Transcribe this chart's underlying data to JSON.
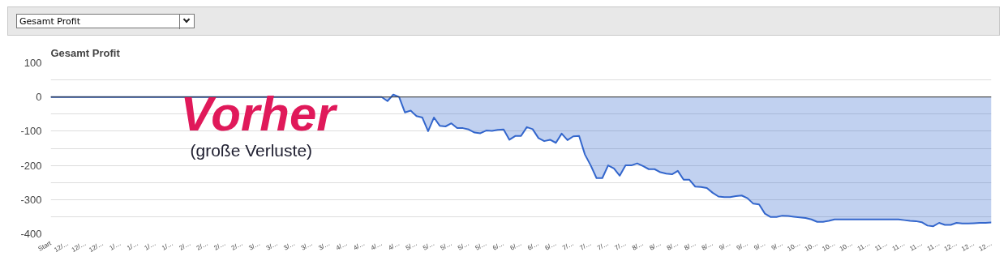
{
  "chart_data": {
    "type": "area",
    "title": "Gesamt Profit",
    "annotations": [
      "Gesamt Profit",
      "Vorher",
      "(große Verluste)"
    ],
    "categories": [
      "Start",
      null,
      null,
      "12/…",
      null,
      null,
      "12/…",
      null,
      null,
      "12/…",
      null,
      null,
      "1/…",
      null,
      null,
      "1/…",
      null,
      null,
      "1/…",
      null,
      null,
      "1/…",
      null,
      null,
      "2/…",
      null,
      null,
      "2/…",
      null,
      null,
      "2/…",
      null,
      null,
      "2/…",
      null,
      null,
      "3/…",
      null,
      null,
      "3/…",
      null,
      null,
      "3/…",
      null,
      null,
      "3/…",
      null,
      null,
      "3/…",
      null,
      null,
      "4/…",
      null,
      null,
      "4/…",
      null,
      null,
      "4/…",
      null,
      null,
      "4/…",
      null,
      null,
      "5/…",
      null,
      null,
      "5/…",
      null,
      null,
      "5/…",
      null,
      null,
      "5/…",
      null,
      null,
      "5/…",
      null,
      null,
      "6/…",
      null,
      null,
      "6/…",
      null,
      null,
      "6/…",
      null,
      null,
      "6/…",
      null,
      null,
      "7/…",
      null,
      null,
      "7/…",
      null,
      null,
      "7/…",
      null,
      null,
      "7/…",
      null,
      null,
      "8/…",
      null,
      null,
      "8/…",
      null,
      null,
      "8/…",
      null,
      null,
      "8/…",
      null,
      null,
      "8/…",
      null,
      null,
      "9/…",
      null,
      null,
      "9/…",
      null,
      null,
      "9/…",
      null,
      null,
      "9/…",
      null,
      null,
      "10…",
      null,
      null,
      "10…",
      null,
      null,
      "10…",
      null,
      null,
      "10…",
      null,
      null,
      "11…",
      null,
      null,
      "11…",
      null,
      null,
      "11…",
      null,
      null,
      "11…",
      null,
      null,
      "11…",
      null,
      null,
      "12…",
      null,
      null,
      "12…",
      null,
      null,
      "12…"
    ],
    "series": [
      {
        "color": "#3366cc",
        "values": [
          0,
          0,
          0,
          0,
          0,
          0,
          0,
          0,
          0,
          0,
          0,
          0,
          0,
          0,
          0,
          0,
          0,
          0,
          0,
          0,
          0,
          0,
          0,
          0,
          0,
          0,
          0,
          0,
          0,
          0,
          0,
          0,
          0,
          0,
          0,
          0,
          0,
          0,
          0,
          0,
          0,
          0,
          0,
          0,
          0,
          0,
          0,
          0,
          0,
          0,
          0,
          0,
          0,
          0,
          0,
          0,
          0,
          0,
          -12,
          7,
          0,
          -45,
          -40,
          -56,
          -60,
          -100,
          -60,
          -84,
          -86,
          -77,
          -91,
          -91,
          -95,
          -104,
          -106,
          -98,
          -99,
          -96,
          -95,
          -125,
          -114,
          -114,
          -88,
          -94,
          -120,
          -129,
          -125,
          -134,
          -107,
          -126,
          -115,
          -114,
          -168,
          -200,
          -237,
          -237,
          -200,
          -209,
          -230,
          -200,
          -200,
          -194,
          -202,
          -211,
          -211,
          -220,
          -224,
          -226,
          -216,
          -242,
          -242,
          -262,
          -263,
          -266,
          -280,
          -291,
          -293,
          -293,
          -290,
          -288,
          -296,
          -312,
          -314,
          -341,
          -351,
          -351,
          -347,
          -348,
          -350,
          -352,
          -354,
          -358,
          -365,
          -365,
          -362,
          -358,
          -358,
          -358,
          -358,
          -358,
          -358,
          -358,
          -358,
          -358,
          -358,
          -358,
          -358,
          -360,
          -362,
          -363,
          -366,
          -376,
          -378,
          -368,
          -374,
          -374,
          -368,
          -370,
          -370,
          -369,
          -368,
          -368,
          -367
        ]
      }
    ],
    "ylim": [
      -400,
      100
    ],
    "yticks": [
      100,
      {
        "value": 50,
        "label": null
      },
      0,
      {
        "value": -50,
        "label": null
      },
      -100,
      {
        "value": -150,
        "label": null
      },
      -200,
      {
        "value": -250,
        "label": null
      },
      -300,
      {
        "value": -350,
        "label": null
      },
      -400
    ],
    "grid": "y",
    "ref_lines": [
      {
        "axis": "y",
        "value": 0,
        "label": null,
        "color": "#333333"
      }
    ]
  }
}
